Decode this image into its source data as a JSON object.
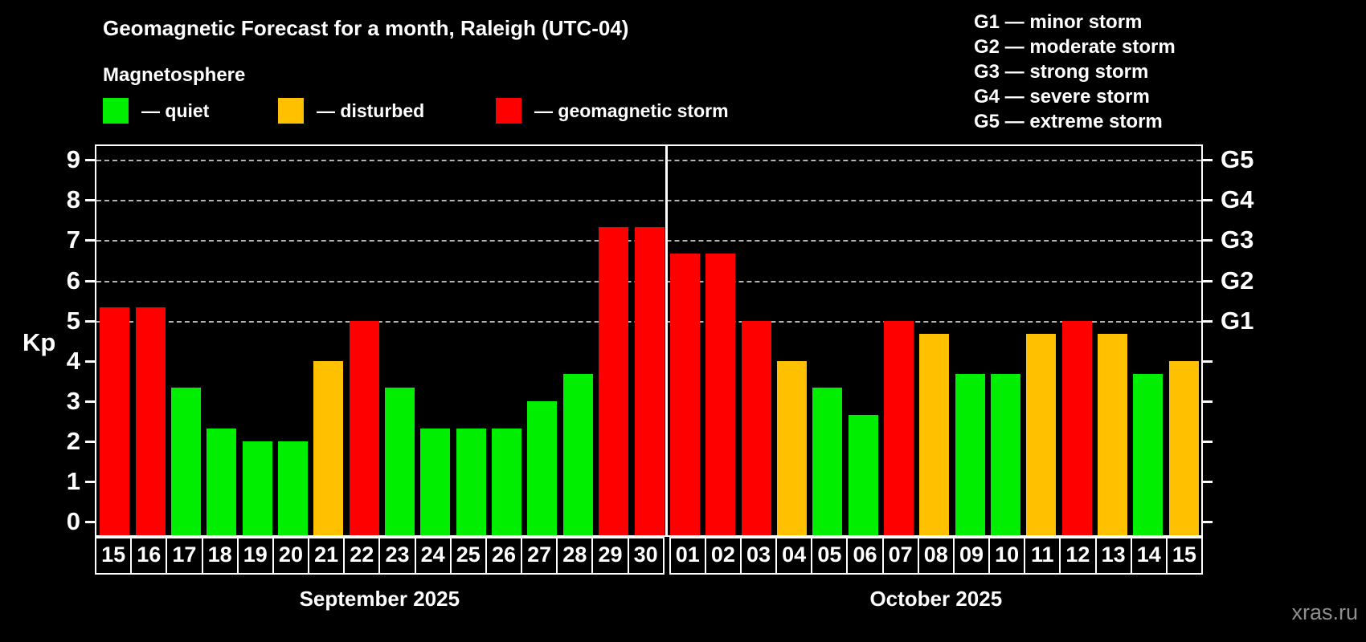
{
  "header": {
    "title": "Geomagnetic Forecast for a month, Raleigh (UTC-04)",
    "subtitle": "Magnetosphere"
  },
  "legend": {
    "quiet_label": "— quiet",
    "disturbed_label": "— disturbed",
    "storm_label": "— geomagnetic storm"
  },
  "g_legend": {
    "items": [
      "G1 — minor storm",
      "G2 — moderate storm",
      "G3 — strong storm",
      "G4 — severe storm",
      "G5 — extreme storm"
    ]
  },
  "colors": {
    "quiet": "#00ee00",
    "disturbed": "#ffc000",
    "storm": "#ff0000",
    "background": "#000000",
    "text": "#ffffff",
    "grid": "#b3b3b3",
    "watermark": "#8f8f8f"
  },
  "watermark": "xras.ru",
  "chart_data": {
    "type": "bar",
    "title": "Geomagnetic Forecast for a month, Raleigh (UTC-04)",
    "ylabel": "Kp",
    "ylim": [
      -0.33,
      9.34
    ],
    "yticks": [
      0,
      1,
      2,
      3,
      4,
      5,
      6,
      7,
      8,
      9
    ],
    "grid": "dashed horizontal at Kp 5-9 only",
    "g_levels": [
      {
        "kp": 5,
        "label": "G1"
      },
      {
        "kp": 6,
        "label": "G2"
      },
      {
        "kp": 7,
        "label": "G3"
      },
      {
        "kp": 8,
        "label": "G4"
      },
      {
        "kp": 9,
        "label": "G5"
      }
    ],
    "months": [
      {
        "label": "September 2025",
        "days": [
          {
            "day": "15",
            "kp": 5.33,
            "status": "storm"
          },
          {
            "day": "16",
            "kp": 5.33,
            "status": "storm"
          },
          {
            "day": "17",
            "kp": 3.33,
            "status": "quiet"
          },
          {
            "day": "18",
            "kp": 2.33,
            "status": "quiet"
          },
          {
            "day": "19",
            "kp": 2.0,
            "status": "quiet"
          },
          {
            "day": "20",
            "kp": 2.0,
            "status": "quiet"
          },
          {
            "day": "21",
            "kp": 4.0,
            "status": "disturbed"
          },
          {
            "day": "22",
            "kp": 5.0,
            "status": "storm"
          },
          {
            "day": "23",
            "kp": 3.33,
            "status": "quiet"
          },
          {
            "day": "24",
            "kp": 2.33,
            "status": "quiet"
          },
          {
            "day": "25",
            "kp": 2.33,
            "status": "quiet"
          },
          {
            "day": "26",
            "kp": 2.33,
            "status": "quiet"
          },
          {
            "day": "27",
            "kp": 3.0,
            "status": "quiet"
          },
          {
            "day": "28",
            "kp": 3.67,
            "status": "quiet"
          },
          {
            "day": "29",
            "kp": 7.33,
            "status": "storm"
          },
          {
            "day": "30",
            "kp": 7.33,
            "status": "storm"
          }
        ]
      },
      {
        "label": "October 2025",
        "days": [
          {
            "day": "01",
            "kp": 6.67,
            "status": "storm"
          },
          {
            "day": "02",
            "kp": 6.67,
            "status": "storm"
          },
          {
            "day": "03",
            "kp": 5.0,
            "status": "storm"
          },
          {
            "day": "04",
            "kp": 4.0,
            "status": "disturbed"
          },
          {
            "day": "05",
            "kp": 3.33,
            "status": "quiet"
          },
          {
            "day": "06",
            "kp": 2.67,
            "status": "quiet"
          },
          {
            "day": "07",
            "kp": 5.0,
            "status": "storm"
          },
          {
            "day": "08",
            "kp": 4.67,
            "status": "disturbed"
          },
          {
            "day": "09",
            "kp": 3.67,
            "status": "quiet"
          },
          {
            "day": "10",
            "kp": 3.67,
            "status": "quiet"
          },
          {
            "day": "11",
            "kp": 4.67,
            "status": "disturbed"
          },
          {
            "day": "12",
            "kp": 5.0,
            "status": "storm"
          },
          {
            "day": "13",
            "kp": 4.67,
            "status": "disturbed"
          },
          {
            "day": "14",
            "kp": 3.67,
            "status": "quiet"
          },
          {
            "day": "15",
            "kp": 4.0,
            "status": "disturbed"
          }
        ]
      }
    ]
  }
}
